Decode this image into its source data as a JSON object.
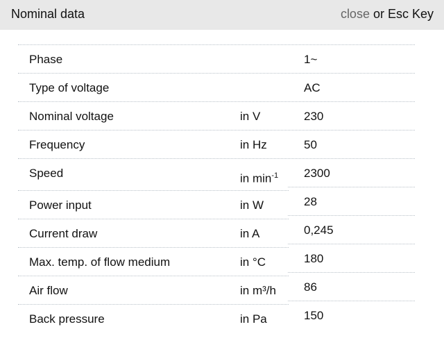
{
  "header": {
    "title": "Nominal data",
    "close_label": "close",
    "close_suffix": " or Esc Key"
  },
  "rows": [
    {
      "label": "Phase",
      "unit": "",
      "value": "1~"
    },
    {
      "label": "Type of voltage",
      "unit": "",
      "value": "AC"
    },
    {
      "label": "Nominal voltage",
      "unit": "in V",
      "value": "230"
    },
    {
      "label": "Frequency",
      "unit": "in Hz",
      "value": "50"
    },
    {
      "label": "Speed",
      "unit": "in min",
      "unit_sup": "-1",
      "value": "2300"
    },
    {
      "label": "Power input",
      "unit": "in W",
      "value": "28"
    },
    {
      "label": "Current draw",
      "unit": "in A",
      "value": "0,245"
    },
    {
      "label": "Max. temp. of flow medium",
      "unit": "in °C",
      "value": "180"
    },
    {
      "label": "Air flow",
      "unit": "in m³/h",
      "value": "86"
    },
    {
      "label": "Back pressure",
      "unit": "in Pa",
      "value": "150"
    }
  ]
}
